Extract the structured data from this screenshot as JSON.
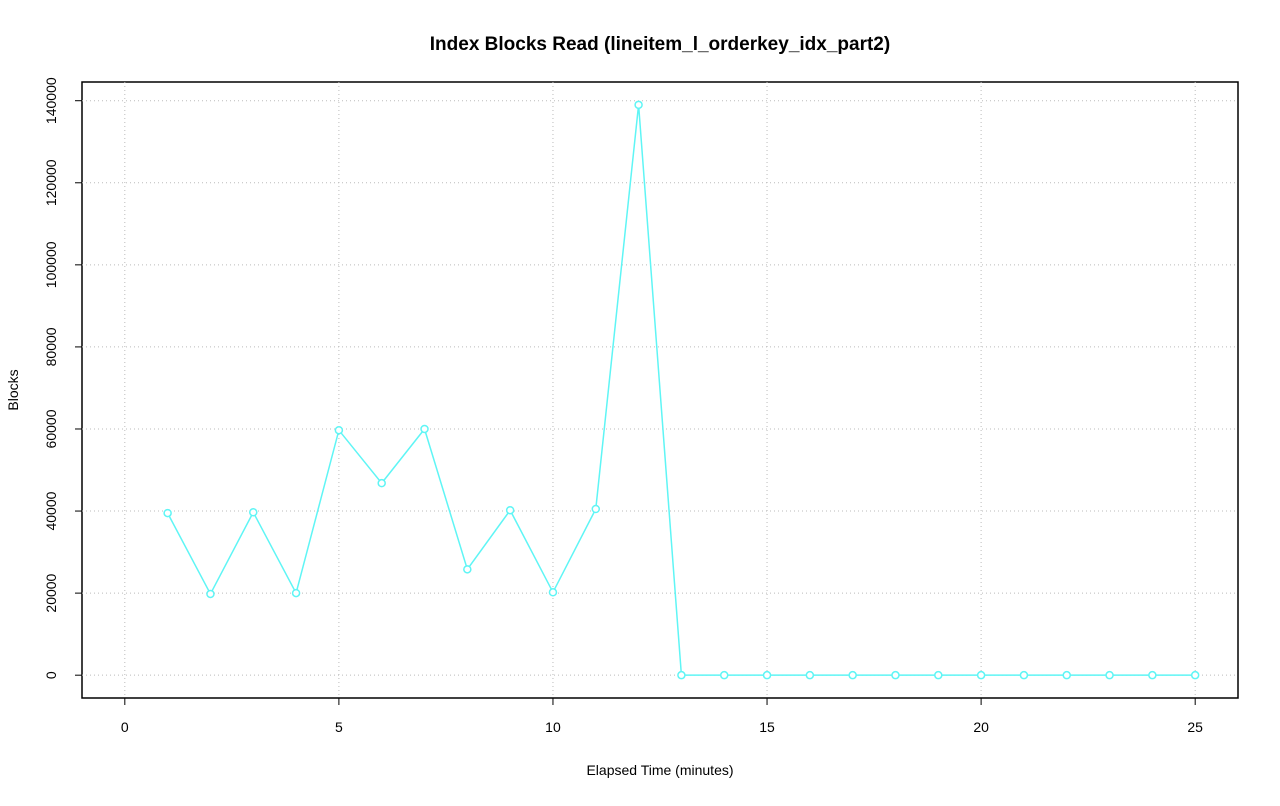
{
  "chart_data": {
    "type": "line",
    "title": "Index Blocks Read (lineitem_l_orderkey_idx_part2)",
    "x_label": "Elapsed Time (minutes)",
    "y_label": "Blocks",
    "x": [
      1,
      2,
      3,
      4,
      5,
      6,
      7,
      8,
      9,
      10,
      11,
      12,
      13,
      14,
      15,
      16,
      17,
      18,
      19,
      20,
      21,
      22,
      23,
      24,
      25
    ],
    "values": [
      39500,
      19800,
      39700,
      20000,
      59700,
      46800,
      60000,
      25800,
      40200,
      20200,
      40500,
      139000,
      0,
      0,
      0,
      0,
      0,
      0,
      0,
      0,
      0,
      0,
      0,
      0,
      0
    ],
    "color": "#5ff5f5",
    "xlim": [
      -1,
      26
    ],
    "xticks": [
      0,
      5,
      10,
      15,
      20,
      25
    ],
    "ylim": [
      -5560,
      144560
    ],
    "yticks": [
      0,
      20000,
      40000,
      60000,
      80000,
      100000,
      120000,
      140000
    ],
    "grid": true
  }
}
